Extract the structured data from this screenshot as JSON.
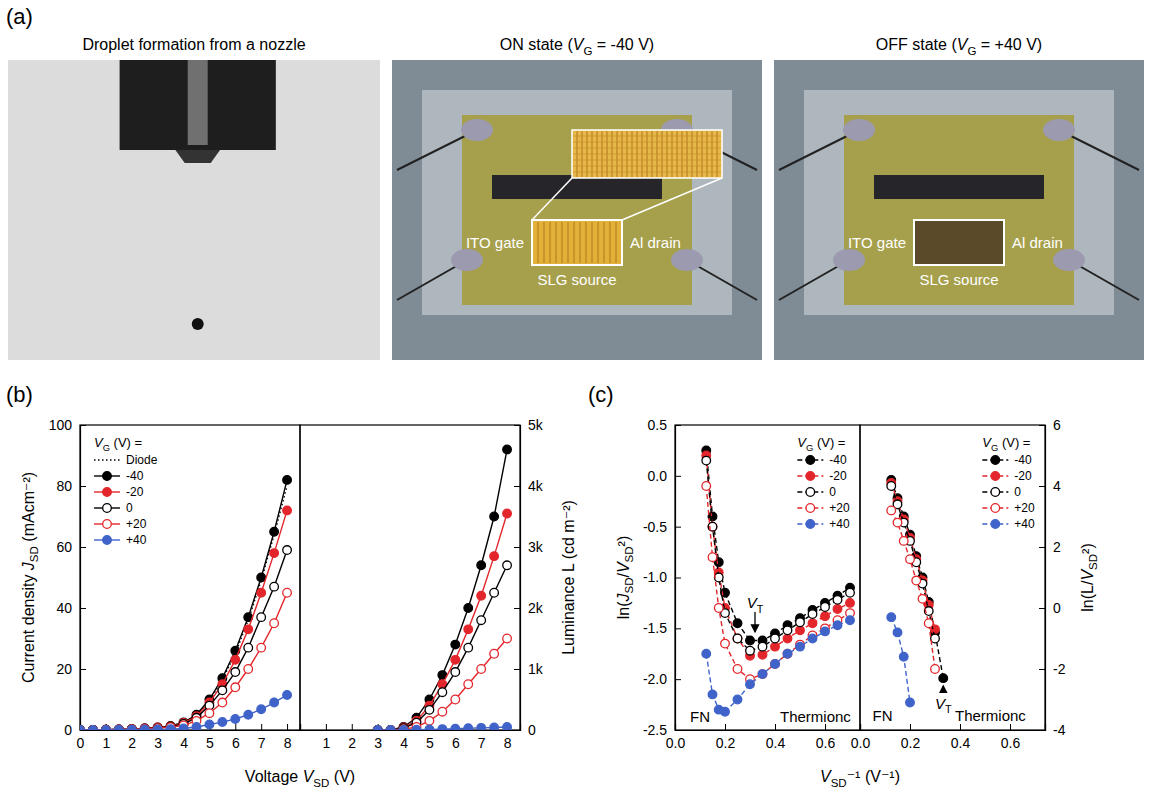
{
  "figure": {
    "panel_labels": [
      "(a)",
      "(b)",
      "(c)"
    ],
    "photos": [
      {
        "title": "Droplet formation from a nozzle"
      },
      {
        "title": "ON state (VG = -40 V)",
        "labels": [
          "ITO gate",
          "Al drain",
          "SLG source"
        ]
      },
      {
        "title": "OFF state (VG = +40 V)",
        "labels": [
          "ITO gate",
          "Al drain",
          "SLG source"
        ]
      }
    ]
  },
  "chart_data": [
    {
      "type": "line",
      "xlabel": "Voltage VSD (V)",
      "ylabel": "Current density JSD (mAcm⁻²)",
      "legend_title": "VG (V) =",
      "legend": "upper left",
      "x": [
        0,
        0.5,
        1,
        1.5,
        2,
        2.5,
        3,
        3.5,
        4,
        4.5,
        5,
        5.5,
        6,
        6.5,
        7,
        7.5,
        8
      ],
      "xlim": [
        0,
        8.5
      ],
      "xticks": [
        0,
        1,
        2,
        3,
        4,
        5,
        6,
        7,
        8
      ],
      "ylim": [
        0,
        100
      ],
      "yticks": [
        0,
        20,
        40,
        60,
        80,
        100
      ],
      "series": [
        {
          "name": "Diode",
          "color": "#000000",
          "marker": "none",
          "line_style": "dotted",
          "values": [
            0,
            0.05,
            0.1,
            0.2,
            0.3,
            0.5,
            0.8,
            1.3,
            2.4,
            4.8,
            9.5,
            16.5,
            25,
            36,
            49,
            64,
            80
          ]
        },
        {
          "name": "-40",
          "color": "#000000",
          "marker": "circle",
          "line_style": "solid",
          "values": [
            0,
            0.05,
            0.1,
            0.2,
            0.3,
            0.5,
            0.8,
            1.3,
            2.5,
            5,
            10,
            17,
            26,
            37,
            50,
            65,
            82
          ]
        },
        {
          "name": "-20",
          "color": "#e3262b",
          "marker": "circle",
          "line_style": "solid",
          "values": [
            0,
            0.05,
            0.1,
            0.2,
            0.3,
            0.5,
            0.8,
            1.2,
            2.3,
            4.5,
            9,
            15,
            23,
            33,
            45,
            58,
            72
          ]
        },
        {
          "name": "0",
          "color": "#000000",
          "marker": "open-circle",
          "line_style": "solid",
          "values": [
            0,
            0.05,
            0.1,
            0.2,
            0.3,
            0.5,
            0.7,
            1.1,
            2,
            4,
            8,
            13,
            19,
            27,
            37,
            47,
            59
          ]
        },
        {
          "name": "+20",
          "color": "#e3262b",
          "marker": "open-circle",
          "line_style": "solid",
          "values": [
            0,
            0.04,
            0.08,
            0.15,
            0.25,
            0.4,
            0.6,
            0.9,
            1.5,
            3,
            5.5,
            9,
            14,
            20,
            27,
            35,
            45
          ]
        },
        {
          "name": "+40",
          "color": "#3f63c9",
          "marker": "circle",
          "line_style": "solid",
          "values": [
            0,
            0.02,
            0.04,
            0.06,
            0.1,
            0.15,
            0.2,
            0.3,
            0.5,
            1,
            1.8,
            2.6,
            3.6,
            5,
            6.8,
            9,
            11.5
          ]
        }
      ]
    },
    {
      "type": "line",
      "ylabel": "Luminance L (cd m⁻²)",
      "x": [
        3,
        3.5,
        4,
        4.5,
        5,
        5.5,
        6,
        6.5,
        7,
        7.5,
        8
      ],
      "xlim": [
        0,
        8.5
      ],
      "xticks": [
        1,
        2,
        3,
        4,
        5,
        6,
        7,
        8
      ],
      "ylim": [
        0,
        5000
      ],
      "yticks": [
        0,
        {
          "value": 1000,
          "label": "1k"
        },
        {
          "value": 2000,
          "label": "2k"
        },
        {
          "value": 3000,
          "label": "3k"
        },
        {
          "value": 4000,
          "label": "4k"
        },
        {
          "value": 5000,
          "label": "5k"
        }
      ],
      "series": [
        {
          "color": "#000000",
          "marker": "circle",
          "line_style": "solid",
          "values": [
            0,
            0,
            50,
            200,
            500,
            900,
            1400,
            2000,
            2700,
            3500,
            4600
          ]
        },
        {
          "color": "#e3262b",
          "marker": "circle",
          "line_style": "solid",
          "values": [
            0,
            0,
            40,
            150,
            400,
            750,
            1150,
            1650,
            2200,
            2850,
            3550
          ]
        },
        {
          "color": "#000000",
          "marker": "open-circle",
          "line_style": "solid",
          "values": [
            0,
            0,
            30,
            120,
            330,
            620,
            950,
            1350,
            1800,
            2250,
            2700
          ]
        },
        {
          "color": "#e3262b",
          "marker": "open-circle",
          "line_style": "solid",
          "values": [
            0,
            0,
            10,
            50,
            150,
            300,
            500,
            750,
            1000,
            1250,
            1500
          ]
        },
        {
          "color": "#3f63c9",
          "marker": "circle",
          "line_style": "solid",
          "values": [
            0,
            0,
            0,
            5,
            10,
            15,
            20,
            28,
            35,
            42,
            50
          ]
        }
      ]
    },
    {
      "type": "line",
      "xlabel": "VSD⁻¹ (V⁻¹)",
      "ylabel": "ln(JSD/VSD²)",
      "legend_title": "VG (V) =",
      "legend": "upper right",
      "x": [
        0.125,
        0.15,
        0.175,
        0.2,
        0.25,
        0.3,
        0.35,
        0.4,
        0.45,
        0.5,
        0.55,
        0.6,
        0.65,
        0.7
      ],
      "xlim": [
        0,
        0.74
      ],
      "xticks": [
        {
          "value": 0,
          "label": "0.0"
        },
        0.2,
        0.4,
        0.6
      ],
      "ylim": [
        -2.5,
        0.5
      ],
      "yticks": [
        -2.5,
        {
          "value": -2,
          "label": "-2.0"
        },
        -1.5,
        {
          "value": -1,
          "label": "-1.0"
        },
        -0.5,
        {
          "value": 0,
          "label": "0.0"
        },
        0.5
      ],
      "annotations": [
        {
          "text": "VT",
          "x": 0.32,
          "y": -1.3,
          "point": [
            0.32,
            -1.58
          ]
        },
        {
          "text": "FN",
          "x": 0.06,
          "y": -2.42
        },
        {
          "text": "Thermionc",
          "x": 0.42,
          "y": -2.42
        }
      ],
      "series": [
        {
          "name": "-40",
          "color": "#000000",
          "marker": "circle",
          "line_style": "dashed",
          "values": [
            0.25,
            -0.4,
            -0.85,
            -1.15,
            -1.45,
            -1.62,
            -1.62,
            -1.55,
            -1.47,
            -1.4,
            -1.32,
            -1.25,
            -1.18,
            -1.1
          ]
        },
        {
          "name": "-20",
          "color": "#e3262b",
          "marker": "circle",
          "line_style": "dashed",
          "values": [
            0.2,
            -0.5,
            -0.95,
            -1.3,
            -1.6,
            -1.77,
            -1.76,
            -1.68,
            -1.6,
            -1.52,
            -1.45,
            -1.38,
            -1.31,
            -1.25
          ]
        },
        {
          "name": "0",
          "color": "#000000",
          "marker": "open-circle",
          "line_style": "dashed",
          "values": [
            0.15,
            -0.5,
            -1.0,
            -1.35,
            -1.6,
            -1.72,
            -1.68,
            -1.6,
            -1.52,
            -1.44,
            -1.36,
            -1.29,
            -1.22,
            -1.15
          ]
        },
        {
          "name": "+20",
          "color": "#e3262b",
          "marker": "open-circle",
          "line_style": "dashed",
          "values": [
            -0.1,
            -0.8,
            -1.3,
            -1.65,
            -1.9,
            -2.0,
            -1.95,
            -1.85,
            -1.75,
            -1.66,
            -1.57,
            -1.5,
            -1.42,
            -1.35
          ]
        },
        {
          "name": "+40",
          "color": "#3f63c9",
          "marker": "circle",
          "line_style": "dashed",
          "values": [
            -1.75,
            -2.15,
            -2.3,
            -2.32,
            -2.2,
            -2.05,
            -1.95,
            -1.85,
            -1.75,
            -1.68,
            -1.6,
            -1.53,
            -1.47,
            -1.42
          ]
        }
      ]
    },
    {
      "type": "line",
      "ylabel": "ln(L/VSD²)",
      "legend_title": "VG (V) =",
      "legend": "upper right",
      "x": [
        0.125,
        0.15,
        0.175,
        0.2,
        0.225,
        0.25,
        0.275,
        0.3,
        0.333
      ],
      "xlim": [
        0,
        0.74
      ],
      "xticks": [
        {
          "value": 0,
          "label": "0.0"
        },
        0.2,
        0.4,
        0.6
      ],
      "ylim": [
        -4,
        6
      ],
      "yticks": [
        -4,
        -2,
        0,
        2,
        4,
        6
      ],
      "annotations": [
        {
          "text": "VT",
          "x": 0.333,
          "y": -3.3,
          "point": [
            0.333,
            -2.4
          ]
        },
        {
          "text": "FN",
          "x": 0.05,
          "y": -3.7
        },
        {
          "text": "Thermionc",
          "x": 0.38,
          "y": -3.7
        }
      ],
      "series": [
        {
          "name": "-40",
          "color": "#000000",
          "marker": "circle",
          "line_style": "dashed",
          "values": [
            4.2,
            3.6,
            3.0,
            2.4,
            1.7,
            1.0,
            0.2,
            -0.8,
            -2.3
          ]
        },
        {
          "name": "-20",
          "color": "#e3262b",
          "marker": "circle",
          "line_style": "dashed",
          "values": [
            4.1,
            3.5,
            2.9,
            2.3,
            1.6,
            0.9,
            0.1,
            -0.7,
            null
          ]
        },
        {
          "name": "0",
          "color": "#000000",
          "marker": "open-circle",
          "line_style": "dashed",
          "values": [
            4.0,
            3.4,
            2.8,
            2.2,
            1.5,
            0.8,
            -0.1,
            -1.0,
            null
          ]
        },
        {
          "name": "+20",
          "color": "#e3262b",
          "marker": "open-circle",
          "line_style": "dashed",
          "values": [
            3.2,
            2.8,
            2.2,
            1.6,
            0.9,
            0.3,
            -0.5,
            -2.0,
            null
          ]
        },
        {
          "name": "+40",
          "color": "#3f63c9",
          "marker": "circle",
          "line_style": "dashed",
          "values": [
            -0.3,
            -0.8,
            -1.6,
            -3.1,
            null,
            null,
            null,
            null,
            null
          ]
        }
      ]
    }
  ]
}
